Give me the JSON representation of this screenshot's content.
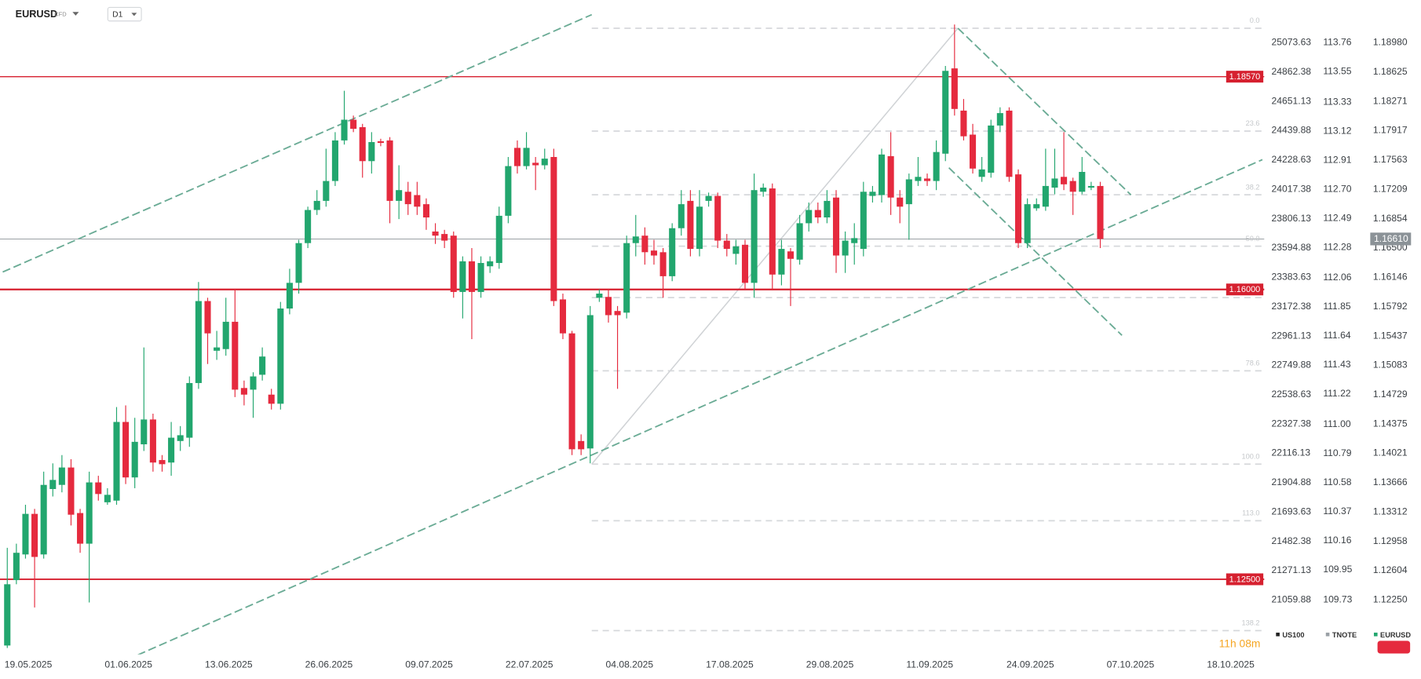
{
  "chart_data": {
    "type": "candlestick",
    "symbol": "EURUSD",
    "instrument_type": "CFD",
    "timeframe": "D1",
    "countdown": "11h 08m",
    "up_color": "#22a66e",
    "down_color": "#e52a3e",
    "open": [
      1.117,
      1.1249,
      1.128,
      1.1329,
      1.128,
      1.1359,
      1.1364,
      1.1385,
      1.133,
      1.1293,
      1.1367,
      1.1343,
      1.1345,
      1.144,
      1.1373,
      1.1413,
      1.1443,
      1.1394,
      1.1391,
      1.1417,
      1.1421,
      1.1487,
      1.1586,
      1.1526,
      1.1528,
      1.1561,
      1.1481,
      1.1479,
      1.1497,
      1.1473,
      1.1462,
      1.1577,
      1.1608,
      1.1656,
      1.1696,
      1.1707,
      1.1731,
      1.178,
      1.1805,
      1.1796,
      1.1755,
      1.1779,
      1.178,
      1.1707,
      1.1718,
      1.1714,
      1.1703,
      1.167,
      1.1667,
      1.1665,
      1.1597,
      1.1634,
      1.1597,
      1.1628,
      1.1632,
      1.1689,
      1.1771,
      1.1749,
      1.1753,
      1.175,
      1.176,
      1.1588,
      1.1547,
      1.1417,
      1.1408,
      1.159,
      1.1591,
      1.1574,
      1.1572,
      1.1656,
      1.1665,
      1.1647,
      1.1645,
      1.1616,
      1.1674,
      1.1707,
      1.1649,
      1.1707,
      1.1713,
      1.1659,
      1.1643,
      1.1654,
      1.1608,
      1.1718,
      1.1722,
      1.1618,
      1.1646,
      1.1636,
      1.168,
      1.1696,
      1.1687,
      1.1711,
      1.1641,
      1.1656,
      1.1649,
      1.1713,
      1.1714,
      1.1761,
      1.1711,
      1.1703,
      1.1731,
      1.1734,
      1.1731,
      1.1764,
      1.1867,
      1.1816,
      1.1787,
      1.1736,
      1.1741,
      1.1798,
      1.1816,
      1.1739,
      1.1656,
      1.1698,
      1.17,
      1.1723,
      1.1736,
      1.1731,
      1.1718,
      1.1723,
      1.1725
    ],
    "high": [
      1.1288,
      1.1293,
      1.134,
      1.1335,
      1.138,
      1.139,
      1.14,
      1.1395,
      1.1335,
      1.138,
      1.1375,
      1.136,
      1.1458,
      1.146,
      1.1445,
      1.153,
      1.145,
      1.14,
      1.144,
      1.1435,
      1.1495,
      1.1609,
      1.159,
      1.155,
      1.159,
      1.16,
      1.149,
      1.15,
      1.153,
      1.148,
      1.1585,
      1.1625,
      1.166,
      1.17,
      1.172,
      1.177,
      1.179,
      1.184,
      1.181,
      1.18,
      1.179,
      1.1782,
      1.1784,
      1.175,
      1.173,
      1.173,
      1.171,
      1.168,
      1.1672,
      1.167,
      1.164,
      1.165,
      1.164,
      1.164,
      1.17,
      1.176,
      1.178,
      1.179,
      1.176,
      1.177,
      1.177,
      1.1595,
      1.155,
      1.1425,
      1.158,
      1.16,
      1.16,
      1.158,
      1.1665,
      1.169,
      1.1675,
      1.166,
      1.165,
      1.168,
      1.172,
      1.172,
      1.172,
      1.1717,
      1.1717,
      1.1667,
      1.166,
      1.166,
      1.174,
      1.1728,
      1.1728,
      1.166,
      1.165,
      1.169,
      1.1705,
      1.1705,
      1.172,
      1.172,
      1.167,
      1.168,
      1.173,
      1.1725,
      1.177,
      1.179,
      1.172,
      1.174,
      1.176,
      1.174,
      1.178,
      1.187,
      1.192,
      1.183,
      1.18,
      1.176,
      1.1805,
      1.182,
      1.182,
      1.1745,
      1.171,
      1.171,
      1.177,
      1.177,
      1.179,
      1.1735,
      1.176,
      1.173,
      1.173
    ],
    "low": [
      1.1167,
      1.1244,
      1.1275,
      1.1216,
      1.1275,
      1.135,
      1.1355,
      1.1315,
      1.1282,
      1.1222,
      1.1345,
      1.134,
      1.134,
      1.1365,
      1.136,
      1.1405,
      1.138,
      1.138,
      1.1375,
      1.1405,
      1.141,
      1.148,
      1.151,
      1.1515,
      1.152,
      1.147,
      1.146,
      1.1445,
      1.149,
      1.1455,
      1.1455,
      1.157,
      1.1595,
      1.165,
      1.169,
      1.17,
      1.1725,
      1.1775,
      1.179,
      1.1735,
      1.174,
      1.1773,
      1.168,
      1.1685,
      1.169,
      1.169,
      1.1672,
      1.1655,
      1.165,
      1.159,
      1.1565,
      1.154,
      1.159,
      1.162,
      1.1625,
      1.168,
      1.174,
      1.1745,
      1.172,
      1.1745,
      1.158,
      1.154,
      1.14,
      1.14,
      1.139,
      1.1585,
      1.156,
      1.148,
      1.1565,
      1.164,
      1.163,
      1.163,
      1.159,
      1.161,
      1.1665,
      1.164,
      1.164,
      1.17,
      1.165,
      1.164,
      1.163,
      1.16,
      1.159,
      1.1712,
      1.16,
      1.1605,
      1.158,
      1.163,
      1.167,
      1.168,
      1.168,
      1.162,
      1.162,
      1.163,
      1.164,
      1.1705,
      1.1705,
      1.169,
      1.168,
      1.166,
      1.1725,
      1.1725,
      1.172,
      1.1755,
      1.181,
      1.178,
      1.174,
      1.173,
      1.1735,
      1.179,
      1.173,
      1.165,
      1.165,
      1.1695,
      1.1695,
      1.1715,
      1.172,
      1.169,
      1.1715,
      1.172,
      1.165
    ],
    "close": [
      1.1244,
      1.1282,
      1.1329,
      1.1277,
      1.1364,
      1.137,
      1.1385,
      1.1328,
      1.1293,
      1.1367,
      1.1353,
      1.1352,
      1.144,
      1.1373,
      1.1416,
      1.1443,
      1.1391,
      1.1389,
      1.1421,
      1.1424,
      1.1487,
      1.1586,
      1.1547,
      1.153,
      1.1561,
      1.1479,
      1.1473,
      1.1495,
      1.1519,
      1.1462,
      1.1577,
      1.1608,
      1.1656,
      1.1696,
      1.1707,
      1.1731,
      1.178,
      1.1805,
      1.1794,
      1.1755,
      1.1778,
      1.1777,
      1.1707,
      1.172,
      1.1703,
      1.17,
      1.1687,
      1.1665,
      1.1659,
      1.1597,
      1.1634,
      1.1597,
      1.1632,
      1.1634,
      1.1689,
      1.1749,
      1.1749,
      1.1771,
      1.175,
      1.1758,
      1.1586,
      1.1547,
      1.1407,
      1.1407,
      1.1569,
      1.1595,
      1.1569,
      1.1569,
      1.1656,
      1.1664,
      1.1645,
      1.1641,
      1.1616,
      1.1674,
      1.1703,
      1.1649,
      1.17,
      1.1713,
      1.1659,
      1.1649,
      1.1652,
      1.1608,
      1.172,
      1.1723,
      1.1618,
      1.1649,
      1.1637,
      1.168,
      1.1696,
      1.1687,
      1.1707,
      1.1641,
      1.1659,
      1.1662,
      1.1718,
      1.1718,
      1.1763,
      1.1711,
      1.17,
      1.1733,
      1.1736,
      1.1731,
      1.1766,
      1.1864,
      1.1818,
      1.1785,
      1.1746,
      1.1745,
      1.1798,
      1.1813,
      1.1736,
      1.1656,
      1.1703,
      1.1703,
      1.1725,
      1.1734,
      1.1727,
      1.1718,
      1.1742,
      1.1725,
      1.1661
    ],
    "xlim": [
      -0.5,
      138
    ],
    "xticks": [
      {
        "value": 0,
        "label": "19.05.2025"
      },
      {
        "value": 11,
        "label": "01.06.2025"
      },
      {
        "value": 22,
        "label": "13.06.2025"
      },
      {
        "value": 33,
        "label": "26.06.2025"
      },
      {
        "value": 44,
        "label": "09.07.2025"
      },
      {
        "value": 55,
        "label": "22.07.2025"
      },
      {
        "value": 66,
        "label": "04.08.2025"
      },
      {
        "value": 77,
        "label": "17.08.2025"
      },
      {
        "value": 88,
        "label": "29.08.2025"
      },
      {
        "value": 99,
        "label": "11.09.2025"
      },
      {
        "value": 110,
        "label": "24.09.2025"
      },
      {
        "value": 121,
        "label": "07.10.2025"
      },
      {
        "value": 132,
        "label": "18.10.2025"
      }
    ],
    "ylim": [
      1.11615,
      1.19494
    ],
    "yticks": [
      {
        "value": 1.1898,
        "label": "1.18980"
      },
      1.18625,
      1.18271,
      1.17917,
      1.17563,
      1.17209,
      1.16854,
      {
        "value": 1.165,
        "label": "1.16500"
      },
      1.16146,
      1.15792,
      1.15437,
      1.15083,
      1.14729,
      1.14375,
      1.14021,
      1.13666,
      1.13312,
      1.12958,
      1.12604,
      {
        "value": 1.1225,
        "label": "1.12250"
      }
    ],
    "y2lim": [
      109.35,
      114.068
    ],
    "y2ticks": [
      113.76,
      113.55,
      113.33,
      113.12,
      112.91,
      {
        "value": 112.7,
        "label": "112.70"
      },
      112.49,
      112.28,
      112.06,
      111.85,
      111.64,
      111.43,
      111.22,
      {
        "value": 111,
        "label": "111.00"
      },
      110.79,
      110.58,
      110.37,
      110.16,
      109.95,
      109.73
    ],
    "y3lim": [
      20681.35,
      25380.37
    ],
    "y3ticks": [
      25073.63,
      24862.38,
      24651.13,
      24439.88,
      24228.63,
      24017.38,
      23806.13,
      23594.88,
      23383.63,
      23172.38,
      22961.13,
      22749.88,
      22538.63,
      22327.38,
      22116.13,
      21904.88,
      21693.63,
      21482.38,
      21271.13,
      21059.88
    ],
    "grid": false,
    "current_price": {
      "value": 1.1661,
      "label": "1.16610",
      "color": "#8b9297"
    },
    "levels": [
      {
        "value": 1.1857,
        "label": "1.18570",
        "color": "#d6202f",
        "width": 1.2
      },
      {
        "value": 1.16,
        "label": "1.16000",
        "color": "#d6202f",
        "width": 2
      },
      {
        "value": 1.125,
        "label": "1.12500",
        "color": "#d6202f",
        "width": 1.6
      }
    ],
    "fibonacci": {
      "start": [
        64.17,
        1.13891
      ],
      "end": [
        104.37,
        1.19155
      ],
      "levels": [
        0,
        23.6,
        38.2,
        50,
        61.8,
        78.6,
        100,
        113,
        138.2
      ],
      "level_labels": [
        "0.0",
        "23.6",
        "38.2",
        "50.0",
        null,
        "78.6",
        "100.0",
        "113.0",
        "138.2"
      ],
      "color": "#cfd2d5"
    },
    "trendlines": [
      {
        "points": [
          [
            -0.5,
            1.16211
          ],
          [
            64.17,
            1.19319
          ]
        ]
      },
      {
        "points": [
          [
            13.13,
            1.11528
          ],
          [
            137.8,
            1.17568
          ]
        ]
      },
      {
        "points": [
          [
            104.37,
            1.19155
          ],
          [
            123.37,
            1.17142
          ]
        ]
      },
      {
        "points": [
          [
            103.38,
            1.1747
          ],
          [
            122.38,
            1.15446
          ]
        ]
      }
    ],
    "trendline_color": "#6aab95",
    "legend": [
      {
        "name": "US100",
        "color": "#222222"
      },
      {
        "name": "TNOTE",
        "color": "#9aa0a6"
      },
      {
        "name": "EURUSD",
        "color": "#22a66e"
      }
    ]
  }
}
